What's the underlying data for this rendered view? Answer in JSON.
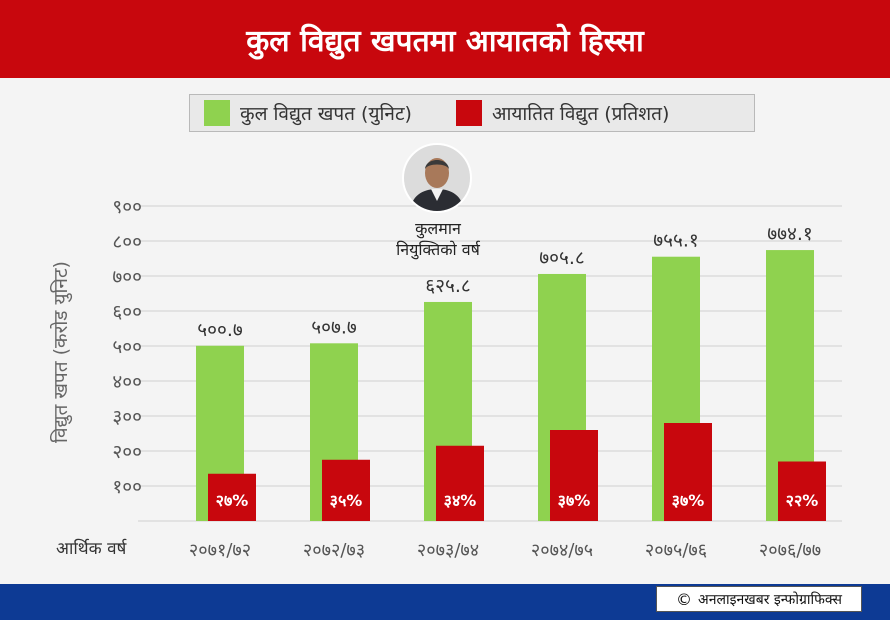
{
  "header": {
    "title": "कुल विद्युत खपतमा आयातको हिस्सा"
  },
  "colors": {
    "header": "#c8070d",
    "green": "#8fd24f",
    "red": "#c8070d",
    "footer": "#0d3a94"
  },
  "annotation": {
    "line1": "कुलमान",
    "line2": "नियुक्तिको वर्ष",
    "icon": "portrait-photo"
  },
  "footer": {
    "credit": "अनलाइनखबर इन्फोग्राफिक्स",
    "copyright_symbol": "©"
  },
  "chart_data": {
    "type": "bar",
    "legend": [
      "कुल विद्युत खपत (युनिट)",
      "आयातित विद्युत (प्रतिशत)"
    ],
    "legend_placement": "top",
    "ylabel": "विद्युत खपत (करोड युनिट)",
    "xlabel": "आर्थिक वर्ष",
    "ylim": [
      0,
      900
    ],
    "yticks": [
      "९००",
      "८००",
      "७००",
      "६००",
      "५००",
      "४००",
      "३००",
      "२००",
      "१००"
    ],
    "ytick_values": [
      900,
      800,
      700,
      600,
      500,
      400,
      300,
      200,
      100
    ],
    "grid": true,
    "categories": [
      "२०७१/७२",
      "२०७२/७३",
      "२०७३/७४",
      "२०७४/७५",
      "२०७५/७६",
      "२०७६/७७"
    ],
    "series": [
      {
        "name": "कुल विद्युत खपत (युनिट)",
        "values": [
          500.7,
          507.7,
          625.8,
          705.8,
          755.1,
          774.1
        ],
        "labels": [
          "५००.७",
          "५०७.७",
          "६२५.८",
          "७०५.८",
          "७५५.१",
          "७७४.१"
        ]
      },
      {
        "name": "आयातित विद्युत (प्रतिशत)",
        "values": [
          27,
          35,
          34,
          37,
          37,
          22
        ],
        "bar_levels": [
          135,
          175,
          215,
          260,
          280,
          170
        ],
        "labels": [
          "२७%",
          "३५%",
          "३४%",
          "३७%",
          "३७%",
          "२२%"
        ]
      }
    ]
  }
}
